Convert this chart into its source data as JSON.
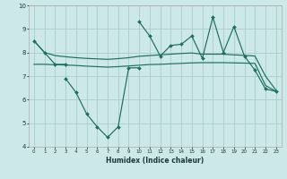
{
  "xlabel": "Humidex (Indice chaleur)",
  "bg_color": "#cce8e8",
  "grid_color": "#aacccc",
  "line_color": "#1a7060",
  "ylim": [
    4,
    10
  ],
  "yticks": [
    4,
    5,
    6,
    7,
    8,
    9,
    10
  ],
  "xticks": [
    0,
    1,
    2,
    3,
    4,
    5,
    6,
    7,
    8,
    9,
    10,
    11,
    12,
    13,
    14,
    15,
    16,
    17,
    18,
    19,
    20,
    21,
    22,
    23
  ],
  "line1_x": [
    0,
    1,
    2,
    3,
    4,
    5,
    6,
    7,
    8,
    9,
    10,
    11,
    12,
    13,
    14,
    15,
    16,
    17,
    18,
    19,
    20,
    21,
    22,
    23
  ],
  "line1_y": [
    8.5,
    8.0,
    7.87,
    7.82,
    7.78,
    7.75,
    7.73,
    7.71,
    7.74,
    7.78,
    7.84,
    7.87,
    7.9,
    7.93,
    7.96,
    7.98,
    7.93,
    7.93,
    7.93,
    7.9,
    7.88,
    7.85,
    7.0,
    6.4
  ],
  "line2_x": [
    0,
    1,
    2,
    3,
    4,
    5,
    6,
    7,
    8,
    9,
    10,
    11,
    12,
    13,
    14,
    15,
    16,
    17,
    18,
    19,
    20,
    21,
    22,
    23
  ],
  "line2_y": [
    7.5,
    7.5,
    7.48,
    7.47,
    7.45,
    7.42,
    7.4,
    7.38,
    7.4,
    7.43,
    7.46,
    7.49,
    7.5,
    7.52,
    7.54,
    7.56,
    7.57,
    7.57,
    7.57,
    7.56,
    7.55,
    7.54,
    6.6,
    6.35
  ],
  "line3_x": [
    0,
    1,
    2,
    3,
    10,
    11,
    12,
    13,
    14,
    15,
    16,
    17,
    18,
    19,
    20,
    21,
    22,
    23
  ],
  "line3_y": [
    8.5,
    8.0,
    7.5,
    7.5,
    9.3,
    8.7,
    7.85,
    8.3,
    8.35,
    8.7,
    7.75,
    9.5,
    8.0,
    9.1,
    7.85,
    7.25,
    6.45,
    6.35
  ],
  "line4_x": [
    3,
    4,
    5,
    6,
    7,
    8,
    9,
    10
  ],
  "line4_y": [
    6.9,
    6.3,
    5.4,
    4.85,
    4.4,
    4.85,
    7.35,
    7.35
  ]
}
